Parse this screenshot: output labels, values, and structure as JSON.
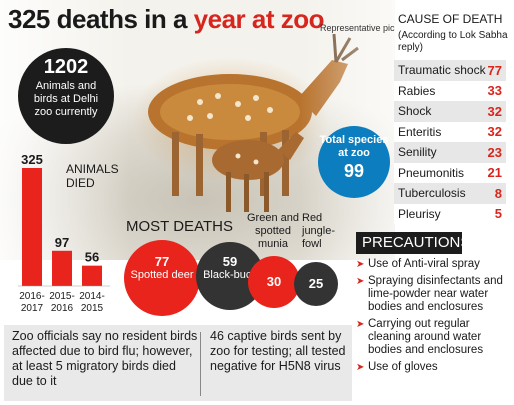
{
  "header": {
    "title_main": "325 deaths in a ",
    "title_accent": "year at zoo",
    "photo_credit": "Representative pic"
  },
  "animals": {
    "count": "1202",
    "label": "Animals and birds at Delhi zoo currently"
  },
  "species": {
    "label": "Total species at zoo",
    "count": "99"
  },
  "colors": {
    "accent_red": "#e8241c",
    "dark": "#333333",
    "blue": "#0c7dbe"
  },
  "chart_data": [
    {
      "type": "bar",
      "title": "ANIMALS DIED",
      "categories": [
        "2016-2017",
        "2015-2016",
        "2014-2015"
      ],
      "values": [
        325,
        97,
        56
      ],
      "ylim": [
        0,
        325
      ],
      "grid": false,
      "legend": "none"
    },
    {
      "type": "bubble",
      "title": "MOST DEATHS",
      "items": [
        {
          "name": "Spotted deer",
          "value": 77
        },
        {
          "name": "Black-buck",
          "value": 59
        },
        {
          "name": "Green and spotted munia",
          "value": 30
        },
        {
          "name": "Red jungle-fowl",
          "value": 25
        }
      ]
    },
    {
      "type": "table",
      "title": "CAUSE OF DEATH",
      "note": "(According to Lok Sabha reply)",
      "rows": [
        {
          "cause": "Traumatic shock",
          "value": 77
        },
        {
          "cause": "Rabies",
          "value": 33
        },
        {
          "cause": "Shock",
          "value": 32
        },
        {
          "cause": "Enteritis",
          "value": 32
        },
        {
          "cause": "Senility",
          "value": 23
        },
        {
          "cause": "Pneumonitis",
          "value": 21
        },
        {
          "cause": "Tuberculosis",
          "value": 8
        },
        {
          "cause": "Pleurisy",
          "value": 5
        }
      ]
    }
  ],
  "bar_labels": {
    "cat_lines": [
      [
        "2016-",
        "2017"
      ],
      [
        "2015-",
        "2016"
      ],
      [
        "2014-",
        "2015"
      ]
    ]
  },
  "bubbles": {
    "deer_label": "Spotted deer",
    "buck_label": "Black-buck",
    "munia_label": "Green and spotted munia",
    "fowl_label": "Red jungle-fowl"
  },
  "precautions": {
    "heading": "PRECAUTIONS",
    "items": [
      "Use of Anti-viral spray",
      "Spraying disinfectants and lime-powder near water bodies and enclosures",
      "Carrying out regular cleaning around water bodies and enclosures",
      "Use of gloves"
    ]
  },
  "notes": {
    "left": "Zoo officials say no resident birds affected due to bird flu; however, at least 5 migratory birds died due to it",
    "right": "46 captive birds sent by zoo for testing; all tested negative for H5N8 virus"
  }
}
